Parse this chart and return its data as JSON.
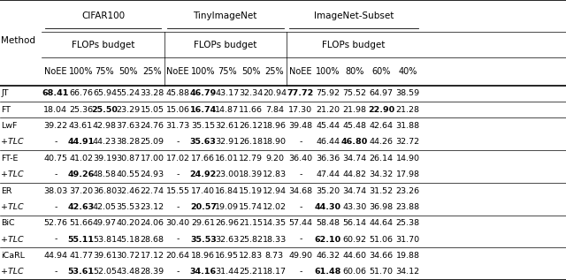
{
  "col_groups": [
    {
      "label": "CIFAR100",
      "sub_label": "FLOPs budget",
      "cols": [
        "NoEE",
        "100%",
        "75%",
        "50%",
        "25%"
      ]
    },
    {
      "label": "TinyImageNet",
      "sub_label": "FLOPs budget",
      "cols": [
        "NoEE",
        "100%",
        "75%",
        "50%",
        "25%"
      ]
    },
    {
      "label": "ImageNet-Subset",
      "sub_label": "FLOPs budget",
      "cols": [
        "NoEE",
        "100%",
        "80%",
        "60%",
        "40%"
      ]
    }
  ],
  "rows": [
    {
      "method": "JT",
      "tlc": false,
      "cifar": [
        "68.41",
        "66.76",
        "65.94",
        "55.24",
        "33.28"
      ],
      "tiny": [
        "45.88",
        "46.79",
        "43.17",
        "32.34",
        "20.94"
      ],
      "imgnet": [
        "77.72",
        "75.92",
        "75.52",
        "64.97",
        "38.59"
      ],
      "bold_cifar": [
        0
      ],
      "bold_tiny": [
        1
      ],
      "bold_imgnet": [
        0
      ]
    },
    {
      "method": "FT",
      "tlc": false,
      "cifar": [
        "18.04",
        "25.36",
        "25.50",
        "23.29",
        "15.05"
      ],
      "tiny": [
        "15.06",
        "16.74",
        "14.87",
        "11.66",
        "7.84"
      ],
      "imgnet": [
        "17.30",
        "21.20",
        "21.98",
        "22.90",
        "21.28"
      ],
      "bold_cifar": [
        2
      ],
      "bold_tiny": [
        1
      ],
      "bold_imgnet": [
        3
      ]
    },
    {
      "method": "LwF",
      "tlc": false,
      "cifar": [
        "39.22",
        "43.61",
        "42.98",
        "37.63",
        "24.76"
      ],
      "tiny": [
        "31.73",
        "35.15",
        "32.61",
        "26.12",
        "18.96"
      ],
      "imgnet": [
        "39.48",
        "45.44",
        "45.48",
        "42.64",
        "31.88"
      ],
      "bold_cifar": [],
      "bold_tiny": [],
      "bold_imgnet": []
    },
    {
      "method": "+TLC",
      "tlc": true,
      "cifar": [
        "-",
        "44.91",
        "44.23",
        "38.28",
        "25.09"
      ],
      "tiny": [
        "-",
        "35.63",
        "32.91",
        "26.18",
        "18.90"
      ],
      "imgnet": [
        "-",
        "46.44",
        "46.80",
        "44.26",
        "32.72"
      ],
      "bold_cifar": [
        1
      ],
      "bold_tiny": [
        1
      ],
      "bold_imgnet": [
        2
      ]
    },
    {
      "method": "FT-E",
      "tlc": false,
      "cifar": [
        "40.75",
        "41.02",
        "39.19",
        "30.87",
        "17.00"
      ],
      "tiny": [
        "17.02",
        "17.66",
        "16.01",
        "12.79",
        "9.20"
      ],
      "imgnet": [
        "36.40",
        "36.36",
        "34.74",
        "26.14",
        "14.90"
      ],
      "bold_cifar": [],
      "bold_tiny": [],
      "bold_imgnet": []
    },
    {
      "method": "+TLC",
      "tlc": true,
      "cifar": [
        "-",
        "49.26",
        "48.58",
        "40.55",
        "24.93"
      ],
      "tiny": [
        "-",
        "24.92",
        "23.00",
        "18.39",
        "12.83"
      ],
      "imgnet": [
        "-",
        "47.44",
        "44.82",
        "34.32",
        "17.98"
      ],
      "bold_cifar": [
        1
      ],
      "bold_tiny": [
        1
      ],
      "bold_imgnet": []
    },
    {
      "method": "ER",
      "tlc": false,
      "cifar": [
        "38.03",
        "37.20",
        "36.80",
        "32.46",
        "22.74"
      ],
      "tiny": [
        "15.55",
        "17.40",
        "16.84",
        "15.19",
        "12.94"
      ],
      "imgnet": [
        "34.68",
        "35.20",
        "34.74",
        "31.52",
        "23.26"
      ],
      "bold_cifar": [],
      "bold_tiny": [],
      "bold_imgnet": []
    },
    {
      "method": "+TLC",
      "tlc": true,
      "cifar": [
        "-",
        "42.63",
        "42.05",
        "35.53",
        "23.12"
      ],
      "tiny": [
        "-",
        "20.57",
        "19.09",
        "15.74",
        "12.02"
      ],
      "imgnet": [
        "-",
        "44.30",
        "43.30",
        "36.98",
        "23.88"
      ],
      "bold_cifar": [
        1
      ],
      "bold_tiny": [
        1
      ],
      "bold_imgnet": [
        1
      ]
    },
    {
      "method": "BiC",
      "tlc": false,
      "cifar": [
        "52.76",
        "51.66",
        "49.97",
        "40.20",
        "24.06"
      ],
      "tiny": [
        "30.40",
        "29.61",
        "26.96",
        "21.15",
        "14.35"
      ],
      "imgnet": [
        "57.44",
        "58.48",
        "56.14",
        "44.64",
        "25.38"
      ],
      "bold_cifar": [],
      "bold_tiny": [],
      "bold_imgnet": []
    },
    {
      "method": "+TLC",
      "tlc": true,
      "cifar": [
        "-",
        "55.11",
        "53.81",
        "45.18",
        "28.68"
      ],
      "tiny": [
        "-",
        "35.53",
        "32.63",
        "25.82",
        "18.33"
      ],
      "imgnet": [
        "-",
        "62.10",
        "60.92",
        "51.06",
        "31.70"
      ],
      "bold_cifar": [
        1
      ],
      "bold_tiny": [
        1
      ],
      "bold_imgnet": [
        1
      ]
    },
    {
      "method": "iCaRL",
      "tlc": false,
      "cifar": [
        "44.94",
        "41.77",
        "39.61",
        "30.72",
        "17.12"
      ],
      "tiny": [
        "20.64",
        "18.96",
        "16.95",
        "12.83",
        "8.73"
      ],
      "imgnet": [
        "49.90",
        "46.32",
        "44.60",
        "34.66",
        "19.88"
      ],
      "bold_cifar": [],
      "bold_tiny": [],
      "bold_imgnet": []
    },
    {
      "method": "+TLC",
      "tlc": true,
      "cifar": [
        "-",
        "53.61",
        "52.05",
        "43.48",
        "28.39"
      ],
      "tiny": [
        "-",
        "34.16",
        "31.44",
        "25.21",
        "18.17"
      ],
      "imgnet": [
        "-",
        "61.48",
        "60.06",
        "51.70",
        "34.12"
      ],
      "bold_cifar": [
        1
      ],
      "bold_tiny": [
        1
      ],
      "bold_imgnet": [
        1
      ]
    }
  ],
  "figsize": [
    6.4,
    3.17
  ],
  "dpi": 100,
  "font_size_header": 7.5,
  "font_size_data": 6.8
}
